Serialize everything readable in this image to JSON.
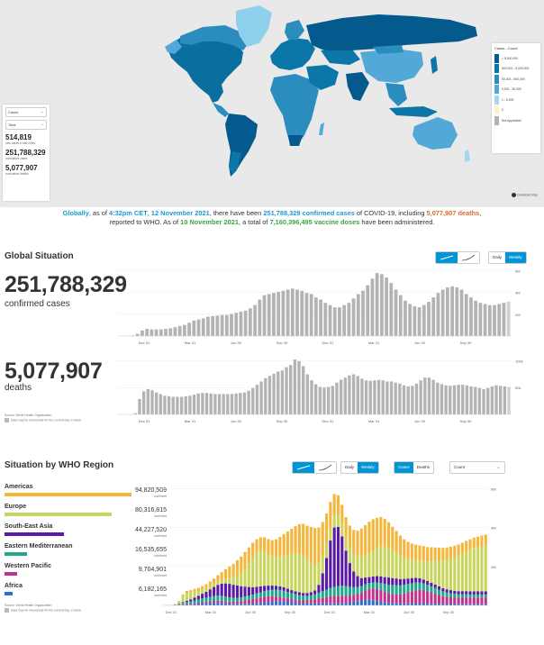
{
  "map_panel": {
    "metric_select": "Cases",
    "period_select": "Total",
    "stats": [
      {
        "value": "514,819",
        "label": "new cases in last 24hrs"
      },
      {
        "value": "251,788,329",
        "label": "cumulative cases"
      },
      {
        "value": "5,077,907",
        "label": "cumulative deaths"
      }
    ],
    "legend": {
      "title": "Cases - Count",
      "items": [
        {
          "label": "> 5,000,000",
          "color": "#045a8d"
        },
        {
          "label": "500,001 - 5,000,000",
          "color": "#0a77a8"
        },
        {
          "label": "50,001 - 500,000",
          "color": "#2b8cbe"
        },
        {
          "label": "5,001 - 50,000",
          "color": "#52a9d8"
        },
        {
          "label": "1 - 5,000",
          "color": "#a6d7ee"
        },
        {
          "label": "0",
          "color": "#fff2c5"
        },
        {
          "label": "Not Applicable",
          "color": "#b3b3b3"
        }
      ]
    },
    "download_label": "Download Map",
    "colors": {
      "ocean": "#e9e9e9",
      "land_default": "#1b7fb0",
      "greenland": "#8fd0ec"
    }
  },
  "summary": {
    "p1": "Globally",
    "p2": ", as of ",
    "time": "4:32pm CET",
    "p3": ", ",
    "date": "12 November 2021",
    "p4": ", there have been ",
    "cases": "251,788,329 confirmed cases",
    "p5": " of COVID-19, including ",
    "deaths": "5,077,907 deaths",
    "p6": ",",
    "p7": "reported to WHO. As of ",
    "vdate": "10 November 2021",
    "p8": ", a total of ",
    "vaccines": "7,160,396,495 vaccine doses",
    "p9": " have been administered."
  },
  "global": {
    "title": "Global Situation",
    "chart_toggle": [
      "bar",
      "line"
    ],
    "period_toggle": [
      "Daily",
      "Weekly"
    ],
    "active_period": "Weekly",
    "cases_total": "251,788,329",
    "cases_label": "confirmed cases",
    "deaths_total": "5,077,907",
    "deaths_label": "deaths",
    "source": "Source: World Health Organization",
    "note": "Data may be incomplete for the current day or week."
  },
  "region": {
    "title": "Situation by WHO Region",
    "period_toggle": [
      "Daily",
      "Weekly"
    ],
    "metric_toggle": [
      "Cases",
      "Deaths"
    ],
    "count_select": "Count",
    "source": "Source: World Health Organization",
    "note": "Data may be incomplete for the current day or week.",
    "regions": [
      {
        "name": "Americas",
        "value": "94,820,509",
        "sub": "confirmed",
        "color": "#f4b63b",
        "frac": 1.0
      },
      {
        "name": "Europe",
        "value": "80,316,815",
        "sub": "confirmed",
        "color": "#c8d55c",
        "frac": 0.847
      },
      {
        "name": "South-East Asia",
        "value": "44,227,520",
        "sub": "confirmed",
        "color": "#5b1aa5",
        "frac": 0.466
      },
      {
        "name": "Eastern Mediterranean",
        "value": "16,535,655",
        "sub": "confirmed",
        "color": "#1fa88a",
        "frac": 0.174
      },
      {
        "name": "Western Pacific",
        "value": "9,704,901",
        "sub": "confirmed",
        "color": "#c2338c",
        "frac": 0.102
      },
      {
        "name": "Africa",
        "value": "6,182,165",
        "sub": "confirmed",
        "color": "#2a6fc9",
        "frac": 0.065
      }
    ]
  },
  "chart_data": [
    {
      "type": "bar",
      "title": "",
      "series": [
        {
          "values": [
            0.0,
            0.0,
            0.01,
            0.05,
            0.2,
            0.5,
            0.65,
            0.6,
            0.6,
            0.6,
            0.65,
            0.7,
            0.8,
            0.9,
            1.0,
            1.2,
            1.4,
            1.5,
            1.6,
            1.75,
            1.8,
            1.85,
            1.9,
            1.9,
            2.0,
            2.1,
            2.2,
            2.3,
            2.5,
            2.8,
            3.3,
            3.7,
            3.8,
            3.9,
            4.0,
            4.1,
            4.2,
            4.3,
            4.2,
            4.1,
            3.9,
            3.8,
            3.5,
            3.3,
            3.0,
            2.8,
            2.6,
            2.6,
            2.8,
            3.0,
            3.4,
            3.8,
            4.1,
            4.6,
            5.2,
            5.7,
            5.6,
            5.3,
            4.8,
            4.2,
            3.7,
            3.2,
            2.9,
            2.7,
            2.6,
            2.8,
            3.1,
            3.5,
            3.9,
            4.2,
            4.4,
            4.5,
            4.4,
            4.2,
            3.8,
            3.5,
            3.2,
            3.0,
            2.9,
            2.8,
            2.8,
            2.9,
            3.0,
            3.1
          ]
        }
      ],
      "x_ticks": [
        "Dec 31",
        "Mar 31",
        "Jun 30",
        "Sep 30",
        "Dec 31",
        "Mar 31",
        "Jun 30",
        "Sep 30"
      ],
      "y_ticks": [
        "2M",
        "4M",
        "6M"
      ],
      "ylim": [
        0,
        6.2
      ],
      "grid": true
    },
    {
      "type": "bar",
      "title": "",
      "series": [
        {
          "values": [
            0.0,
            0.0,
            0.0,
            0.1,
            2,
            28,
            42,
            46,
            44,
            40,
            37,
            34,
            33,
            32,
            32,
            32,
            33,
            34,
            36,
            38,
            39,
            39,
            38,
            37,
            37,
            37,
            37,
            37,
            38,
            39,
            40,
            43,
            48,
            54,
            60,
            66,
            70,
            74,
            78,
            80,
            86,
            90,
            100,
            97,
            88,
            73,
            62,
            55,
            50,
            49,
            50,
            52,
            58,
            63,
            67,
            71,
            73,
            70,
            65,
            62,
            61,
            62,
            63,
            62,
            60,
            60,
            58,
            56,
            53,
            51,
            52,
            56,
            62,
            67,
            67,
            63,
            58,
            55,
            53,
            52,
            53,
            54,
            54,
            53,
            51,
            50,
            48,
            46,
            48,
            51,
            53,
            52,
            51,
            50
          ]
        }
      ],
      "x_ticks": [
        "Dec 31",
        "Mar 31",
        "Jun 30",
        "Sep 30",
        "Dec 31",
        "Mar 31",
        "Jun 30",
        "Sep 30"
      ],
      "y_ticks": [
        "50k",
        "100k"
      ],
      "ylim": [
        0,
        105
      ],
      "grid": true
    },
    {
      "type": "bar",
      "title": "",
      "categories_count": 84,
      "series": [
        {
          "name": "Africa",
          "values": [
            0,
            0,
            0,
            0,
            0,
            0.01,
            0.02,
            0.03,
            0.05,
            0.07,
            0.09,
            0.1,
            0.11,
            0.12,
            0.12,
            0.11,
            0.1,
            0.09,
            0.08,
            0.08,
            0.08,
            0.08,
            0.08,
            0.09,
            0.1,
            0.12,
            0.14,
            0.16,
            0.18,
            0.2,
            0.21,
            0.2,
            0.18,
            0.16,
            0.14,
            0.12,
            0.11,
            0.1,
            0.1,
            0.1,
            0.1,
            0.1,
            0.1,
            0.1,
            0.1,
            0.1,
            0.11,
            0.13,
            0.16,
            0.19,
            0.22,
            0.25,
            0.27,
            0.28,
            0.26,
            0.22,
            0.18,
            0.15,
            0.13,
            0.12,
            0.11,
            0.1,
            0.1,
            0.1,
            0.1,
            0.09,
            0.09,
            0.09,
            0.08,
            0.08,
            0.08,
            0.08,
            0.07,
            0.07,
            0.07,
            0.07,
            0.06,
            0.06,
            0.06,
            0.06,
            0.06,
            0.06,
            0.06,
            0.06
          ]
        },
        {
          "name": "Western Pacific",
          "values": [
            0,
            0.01,
            0.01,
            0.02,
            0.03,
            0.04,
            0.05,
            0.05,
            0.06,
            0.07,
            0.08,
            0.09,
            0.1,
            0.11,
            0.12,
            0.12,
            0.11,
            0.1,
            0.1,
            0.12,
            0.14,
            0.17,
            0.2,
            0.23,
            0.26,
            0.28,
            0.3,
            0.3,
            0.28,
            0.25,
            0.22,
            0.2,
            0.18,
            0.16,
            0.15,
            0.14,
            0.14,
            0.15,
            0.17,
            0.2,
            0.24,
            0.28,
            0.32,
            0.36,
            0.38,
            0.39,
            0.38,
            0.36,
            0.34,
            0.33,
            0.35,
            0.4,
            0.48,
            0.55,
            0.6,
            0.62,
            0.6,
            0.55,
            0.5,
            0.46,
            0.44,
            0.45,
            0.5,
            0.56,
            0.62,
            0.68,
            0.7,
            0.68,
            0.64,
            0.58,
            0.52,
            0.46,
            0.4,
            0.36,
            0.34,
            0.32,
            0.32,
            0.33,
            0.34,
            0.34,
            0.34,
            0.34,
            0.34,
            0.34
          ]
        },
        {
          "name": "Eastern Mediterranean",
          "values": [
            0,
            0,
            0,
            0.02,
            0.05,
            0.08,
            0.1,
            0.12,
            0.14,
            0.16,
            0.18,
            0.2,
            0.22,
            0.24,
            0.25,
            0.25,
            0.24,
            0.22,
            0.2,
            0.19,
            0.19,
            0.2,
            0.21,
            0.22,
            0.24,
            0.26,
            0.28,
            0.3,
            0.32,
            0.34,
            0.35,
            0.34,
            0.32,
            0.3,
            0.28,
            0.26,
            0.24,
            0.23,
            0.24,
            0.26,
            0.3,
            0.34,
            0.38,
            0.42,
            0.46,
            0.48,
            0.5,
            0.48,
            0.44,
            0.4,
            0.36,
            0.33,
            0.31,
            0.3,
            0.3,
            0.32,
            0.35,
            0.38,
            0.42,
            0.45,
            0.47,
            0.46,
            0.44,
            0.42,
            0.4,
            0.38,
            0.36,
            0.34,
            0.32,
            0.3,
            0.28,
            0.26,
            0.24,
            0.22,
            0.2,
            0.19,
            0.18,
            0.17,
            0.16,
            0.15,
            0.15,
            0.15,
            0.15,
            0.15
          ]
        },
        {
          "name": "South-East Asia",
          "values": [
            0,
            0,
            0,
            0,
            0.01,
            0.03,
            0.06,
            0.1,
            0.14,
            0.18,
            0.24,
            0.3,
            0.38,
            0.46,
            0.55,
            0.62,
            0.66,
            0.68,
            0.66,
            0.62,
            0.56,
            0.5,
            0.44,
            0.38,
            0.34,
            0.3,
            0.27,
            0.24,
            0.22,
            0.2,
            0.18,
            0.17,
            0.16,
            0.15,
            0.14,
            0.14,
            0.14,
            0.15,
            0.16,
            0.2,
            0.4,
            0.9,
            1.6,
            2.4,
            3.0,
            3.0,
            2.5,
            1.8,
            1.2,
            0.8,
            0.55,
            0.4,
            0.35,
            0.3,
            0.3,
            0.32,
            0.34,
            0.35,
            0.36,
            0.35,
            0.34,
            0.32,
            0.3,
            0.28,
            0.26,
            0.24,
            0.22,
            0.2,
            0.19,
            0.18,
            0.17,
            0.16,
            0.16,
            0.16,
            0.16,
            0.16,
            0.16,
            0.16,
            0.16,
            0.16,
            0.16,
            0.16,
            0.16,
            0.16
          ]
        },
        {
          "name": "Europe",
          "values": [
            0,
            0,
            0,
            0.02,
            0.12,
            0.35,
            0.4,
            0.35,
            0.3,
            0.25,
            0.2,
            0.18,
            0.16,
            0.15,
            0.16,
            0.18,
            0.22,
            0.28,
            0.36,
            0.48,
            0.65,
            0.9,
            1.2,
            1.5,
            1.7,
            1.8,
            1.75,
            1.6,
            1.5,
            1.45,
            1.5,
            1.6,
            1.7,
            1.8,
            1.9,
            1.95,
            1.9,
            1.7,
            1.5,
            1.3,
            1.1,
            0.9,
            0.75,
            0.65,
            0.6,
            0.6,
            0.65,
            0.7,
            0.8,
            0.9,
            1.0,
            1.1,
            1.15,
            1.2,
            1.3,
            1.4,
            1.5,
            1.55,
            1.5,
            1.4,
            1.3,
            1.2,
            1.1,
            1.0,
            0.95,
            0.9,
            0.9,
            0.95,
            1.0,
            1.1,
            1.2,
            1.3,
            1.4,
            1.5,
            1.6,
            1.7,
            1.8,
            1.9,
            2.0,
            2.1,
            2.2,
            2.25,
            2.3,
            2.35
          ]
        },
        {
          "name": "Americas",
          "values": [
            0,
            0,
            0,
            0,
            0.02,
            0.05,
            0.1,
            0.12,
            0.14,
            0.16,
            0.18,
            0.2,
            0.24,
            0.28,
            0.33,
            0.4,
            0.5,
            0.6,
            0.7,
            0.8,
            0.85,
            0.85,
            0.8,
            0.75,
            0.7,
            0.68,
            0.7,
            0.75,
            0.8,
            0.9,
            1.0,
            1.1,
            1.2,
            1.3,
            1.4,
            1.5,
            1.6,
            1.7,
            1.8,
            1.85,
            1.8,
            1.7,
            1.5,
            1.3,
            1.1,
            1.0,
            0.95,
            1.0,
            1.1,
            1.2,
            1.3,
            1.4,
            1.5,
            1.6,
            1.6,
            1.55,
            1.5,
            1.4,
            1.3,
            1.2,
            1.1,
            1.0,
            0.9,
            0.85,
            0.8,
            0.78,
            0.76,
            0.74,
            0.72,
            0.7,
            0.68,
            0.66,
            0.64,
            0.62,
            0.6,
            0.58,
            0.56,
            0.55,
            0.54,
            0.53,
            0.52,
            0.52,
            0.52,
            0.52
          ]
        }
      ],
      "x_ticks": [
        "Dec 31",
        "Mar 31",
        "Jun 30",
        "Sep 30",
        "Dec 31",
        "Mar 31",
        "Jun 30",
        "Sep 30"
      ],
      "y_ticks": [
        "2M",
        "4M",
        "6M"
      ],
      "ylim": [
        0,
        6.2
      ],
      "stacked": true
    }
  ]
}
